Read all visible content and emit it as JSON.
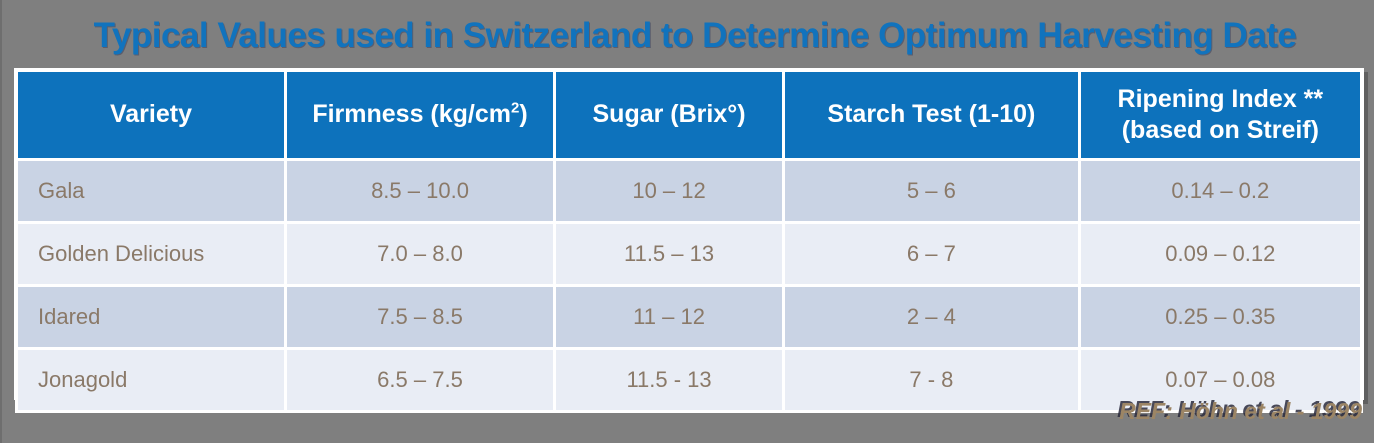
{
  "title": "Typical Values used in Switzerland to Determine Optimum Harvesting Date",
  "table": {
    "headers": {
      "variety": "Variety",
      "firmness_pre": "Firmness (kg/cm",
      "firmness_sup": "2",
      "firmness_post": ")",
      "sugar": "Sugar (Brix°)",
      "starch": "Starch Test (1-10)",
      "ripening_line1": "Ripening Index **",
      "ripening_line2": "(based on Streif)"
    },
    "rows": [
      {
        "variety": "Gala",
        "firmness": "8.5 – 10.0",
        "sugar": "10 – 12",
        "starch": "5 – 6",
        "ripening": "0.14 – 0.2"
      },
      {
        "variety": "Golden Delicious",
        "firmness": "7.0 – 8.0",
        "sugar": "11.5 – 13",
        "starch": "6 – 7",
        "ripening": "0.09 – 0.12"
      },
      {
        "variety": "Idared",
        "firmness": "7.5 – 8.5",
        "sugar": "11 – 12",
        "starch": "2 – 4",
        "ripening": "0.25 – 0.35"
      },
      {
        "variety": "Jonagold",
        "firmness": "6.5 – 7.5",
        "sugar": "11.5 - 13",
        "starch": "7 - 8",
        "ripening": "0.07 – 0.08"
      }
    ]
  },
  "reference": "REF: Höhn et al - 1999",
  "colors": {
    "background": "#7f7f7f",
    "title_blue": "#1173bd",
    "header_blue": "#0d72bc",
    "row_odd": "#c9d3e4",
    "row_even": "#e9edf5",
    "cell_text": "#8a7968",
    "header_text": "#ffffff",
    "grid_white": "#ffffff",
    "reference_tan": "#9c8565"
  },
  "chart_data": {
    "type": "table",
    "title": "Typical Values used in Switzerland to Determine Optimum Harvesting Date",
    "columns": [
      "Variety",
      "Firmness (kg/cm2)",
      "Sugar (Brix°)",
      "Starch Test (1-10)",
      "Ripening Index ** (based on Streif)"
    ],
    "rows": [
      [
        "Gala",
        "8.5 – 10.0",
        "10 – 12",
        "5 – 6",
        "0.14 – 0.2"
      ],
      [
        "Golden Delicious",
        "7.0 – 8.0",
        "11.5 – 13",
        "6 – 7",
        "0.09 – 0.12"
      ],
      [
        "Idared",
        "7.5 – 8.5",
        "11 – 12",
        "2 – 4",
        "0.25 – 0.35"
      ],
      [
        "Jonagold",
        "6.5 – 7.5",
        "11.5 - 13",
        "7 - 8",
        "0.07 – 0.08"
      ]
    ]
  }
}
